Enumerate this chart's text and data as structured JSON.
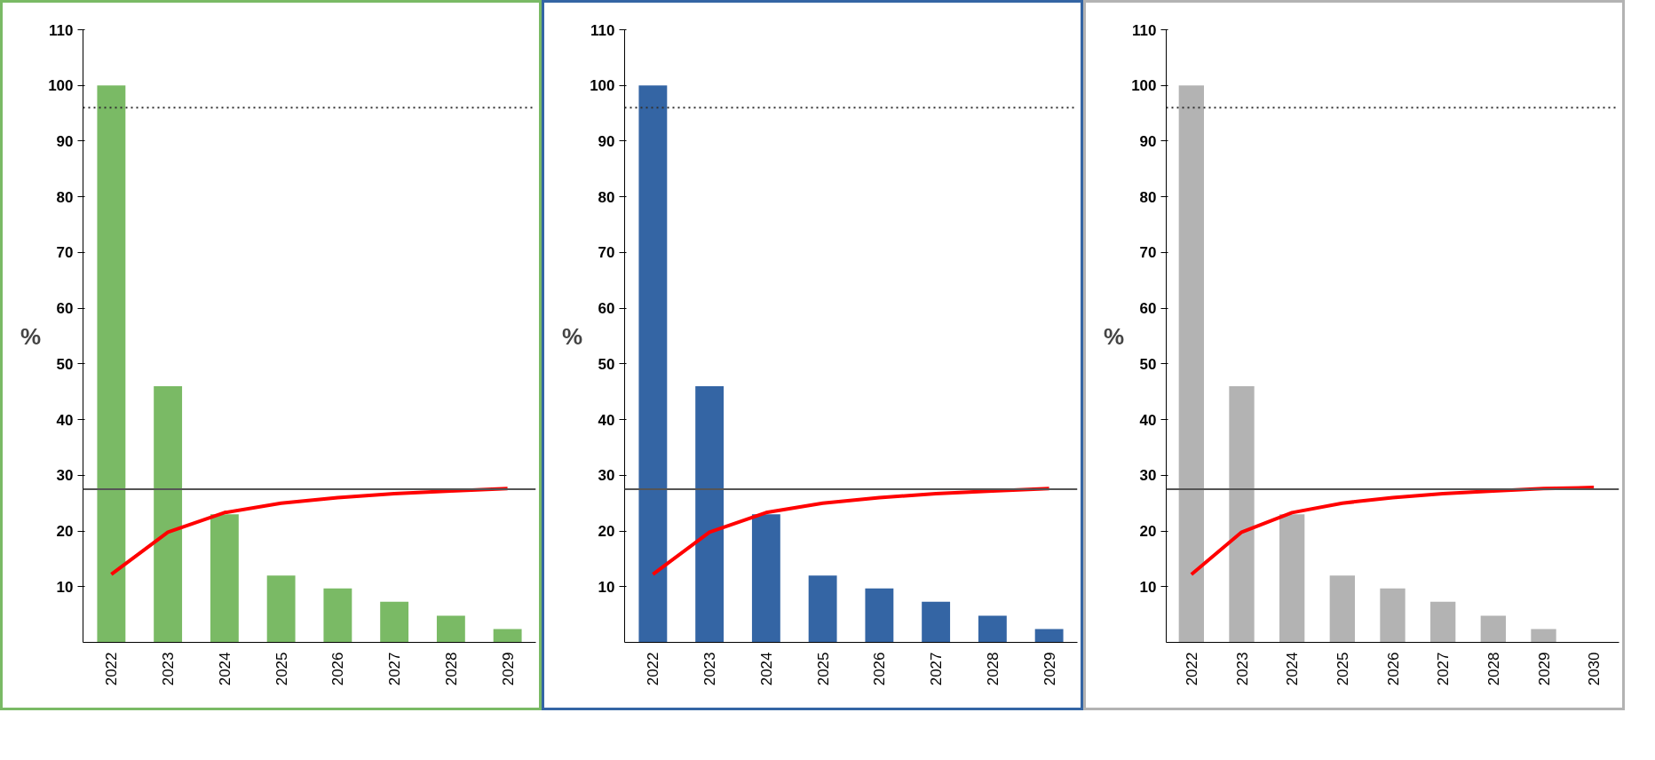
{
  "chart_data": [
    {
      "type": "bar",
      "ylabel": "%",
      "categories": [
        "2022",
        "2023",
        "2024",
        "2025",
        "2026",
        "2027",
        "2028",
        "2029"
      ],
      "ylim": [
        0,
        110
      ],
      "yticks": [
        10,
        20,
        30,
        40,
        50,
        60,
        70,
        80,
        90,
        100,
        110
      ],
      "grid": false,
      "series": [
        {
          "color": "#7aba65",
          "values": [
            100,
            46,
            23,
            12,
            9.7,
            7.3,
            4.8,
            2.4
          ]
        },
        {
          "type": "line",
          "color": "#ff0000",
          "values": [
            12.2,
            19.8,
            23.3,
            25.0,
            26.0,
            26.7,
            27.2,
            27.6
          ]
        }
      ],
      "ref_lines": [
        {
          "axis": "y",
          "value": 27.5,
          "color": "#555555",
          "line_style": "solid"
        },
        {
          "axis": "y",
          "value": 96,
          "color": "#333333",
          "line_style": "dotted"
        }
      ]
    },
    {
      "type": "bar",
      "ylabel": "%",
      "categories": [
        "2022",
        "2023",
        "2024",
        "2025",
        "2026",
        "2027",
        "2028",
        "2029"
      ],
      "ylim": [
        0,
        110
      ],
      "yticks": [
        10,
        20,
        30,
        40,
        50,
        60,
        70,
        80,
        90,
        100,
        110
      ],
      "grid": false,
      "series": [
        {
          "color": "#3465a4",
          "values": [
            100,
            46,
            23,
            12,
            9.7,
            7.3,
            4.8,
            2.4
          ]
        },
        {
          "type": "line",
          "color": "#ff0000",
          "values": [
            12.2,
            19.8,
            23.3,
            25.0,
            26.0,
            26.7,
            27.2,
            27.6
          ]
        }
      ],
      "ref_lines": [
        {
          "axis": "y",
          "value": 27.5,
          "color": "#555555",
          "line_style": "solid"
        },
        {
          "axis": "y",
          "value": 96,
          "color": "#333333",
          "line_style": "dotted"
        }
      ]
    },
    {
      "type": "bar",
      "ylabel": "%",
      "categories": [
        "2022",
        "2023",
        "2024",
        "2025",
        "2026",
        "2027",
        "2028",
        "2029",
        "2030"
      ],
      "ylim": [
        0,
        110
      ],
      "yticks": [
        10,
        20,
        30,
        40,
        50,
        60,
        70,
        80,
        90,
        100,
        110
      ],
      "grid": false,
      "series": [
        {
          "color": "#b3b3b3",
          "values": [
            100,
            46,
            23,
            12,
            9.7,
            7.3,
            4.8,
            2.4,
            null
          ]
        },
        {
          "type": "line",
          "color": "#ff0000",
          "values": [
            12.2,
            19.8,
            23.3,
            25.0,
            26.0,
            26.7,
            27.2,
            27.6,
            27.8
          ]
        }
      ],
      "ref_lines": [
        {
          "axis": "y",
          "value": 27.5,
          "color": "#555555",
          "line_style": "solid"
        },
        {
          "axis": "y",
          "value": 96,
          "color": "#333333",
          "line_style": "dotted"
        }
      ]
    }
  ]
}
